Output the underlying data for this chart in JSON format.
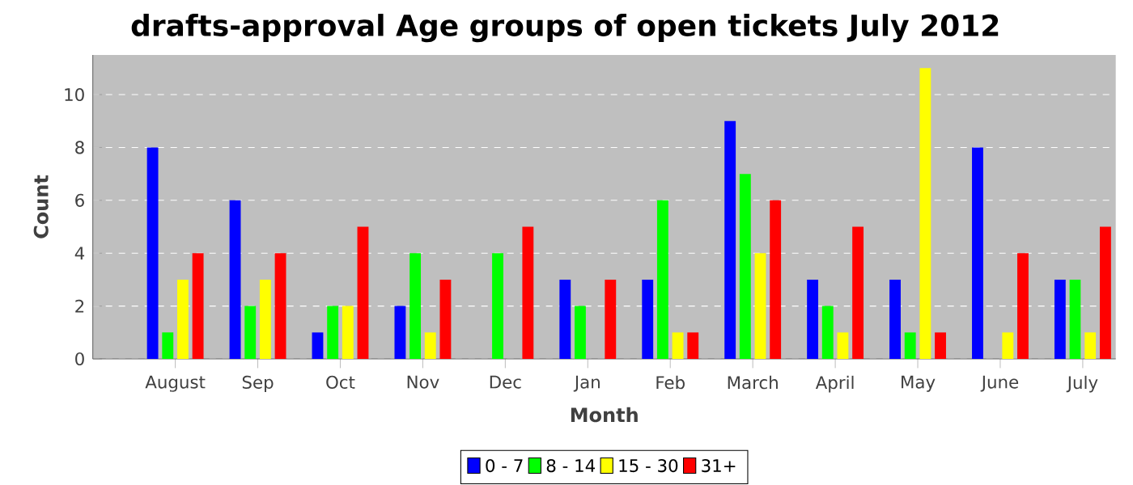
{
  "chart_data": {
    "type": "bar",
    "title": "drafts-approval Age groups of open tickets July 2012",
    "xlabel": "Month",
    "ylabel": "Count",
    "categories": [
      "August",
      "Sep",
      "Oct",
      "Nov",
      "Dec",
      "Jan",
      "Feb",
      "March",
      "April",
      "May",
      "June",
      "July"
    ],
    "series": [
      {
        "name": "0 - 7",
        "color": "#0000ff",
        "values": [
          8,
          6,
          1,
          2,
          0,
          3,
          3,
          9,
          3,
          3,
          8,
          3
        ]
      },
      {
        "name": "8 - 14",
        "color": "#00ff00",
        "values": [
          1,
          2,
          2,
          4,
          4,
          2,
          6,
          7,
          2,
          1,
          0,
          3
        ]
      },
      {
        "name": "15 - 30",
        "color": "#ffff00",
        "values": [
          3,
          3,
          2,
          1,
          0,
          0,
          1,
          4,
          1,
          11,
          1,
          1
        ]
      },
      {
        "name": "31+",
        "color": "#ff0000",
        "values": [
          4,
          4,
          5,
          3,
          5,
          3,
          1,
          6,
          5,
          1,
          4,
          5
        ]
      }
    ],
    "ylim": [
      0,
      11.5
    ],
    "yticks": [
      0,
      2,
      4,
      6,
      8,
      10
    ],
    "grid": "y",
    "legend": "bottom"
  }
}
